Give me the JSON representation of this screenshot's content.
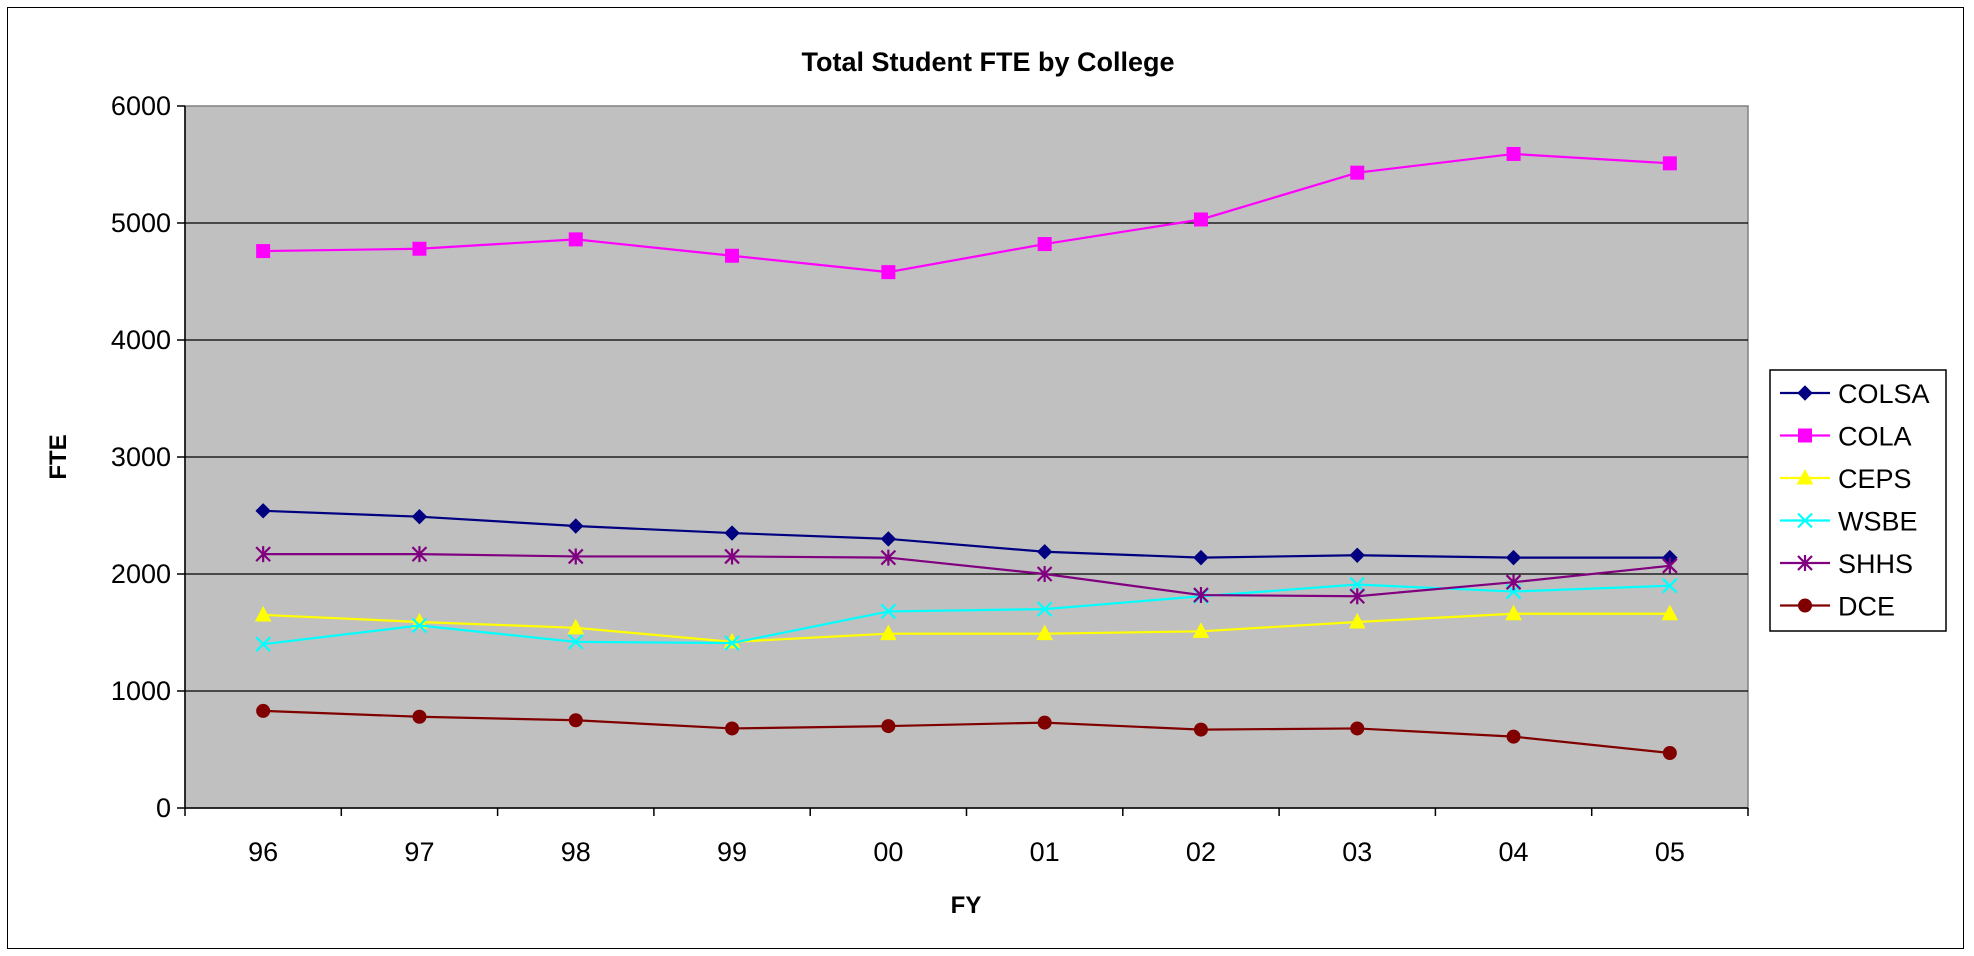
{
  "chart_data": {
    "type": "line",
    "title": "Total Student FTE by College",
    "xlabel": "FY",
    "ylabel": "FTE",
    "categories": [
      "96",
      "97",
      "98",
      "99",
      "00",
      "01",
      "02",
      "03",
      "04",
      "05"
    ],
    "ylim": [
      0,
      6000
    ],
    "yticks": [
      0,
      1000,
      2000,
      3000,
      4000,
      5000,
      6000
    ],
    "grid": "horizontal",
    "legend_position": "right",
    "plot_background": "#c0c0c0",
    "series": [
      {
        "name": "COLSA",
        "color": "#000080",
        "marker": "diamond",
        "values": [
          2540,
          2490,
          2410,
          2350,
          2300,
          2190,
          2140,
          2160,
          2140,
          2140
        ]
      },
      {
        "name": "COLA",
        "color": "#ff00ff",
        "marker": "square",
        "values": [
          4760,
          4780,
          4860,
          4720,
          4580,
          4820,
          5030,
          5430,
          5590,
          5510
        ]
      },
      {
        "name": "CEPS",
        "color": "#ffff00",
        "marker": "triangle",
        "values": [
          1650,
          1590,
          1540,
          1420,
          1490,
          1490,
          1510,
          1590,
          1660,
          1660
        ]
      },
      {
        "name": "WSBE",
        "color": "#00ffff",
        "marker": "x",
        "values": [
          1400,
          1560,
          1420,
          1410,
          1680,
          1700,
          1810,
          1910,
          1850,
          1900
        ]
      },
      {
        "name": "SHHS",
        "color": "#800080",
        "marker": "star",
        "values": [
          2170,
          2170,
          2150,
          2150,
          2140,
          2000,
          1820,
          1810,
          1930,
          2070
        ]
      },
      {
        "name": "DCE",
        "color": "#800000",
        "marker": "circle",
        "values": [
          830,
          780,
          750,
          680,
          700,
          730,
          670,
          680,
          610,
          470
        ]
      }
    ]
  }
}
